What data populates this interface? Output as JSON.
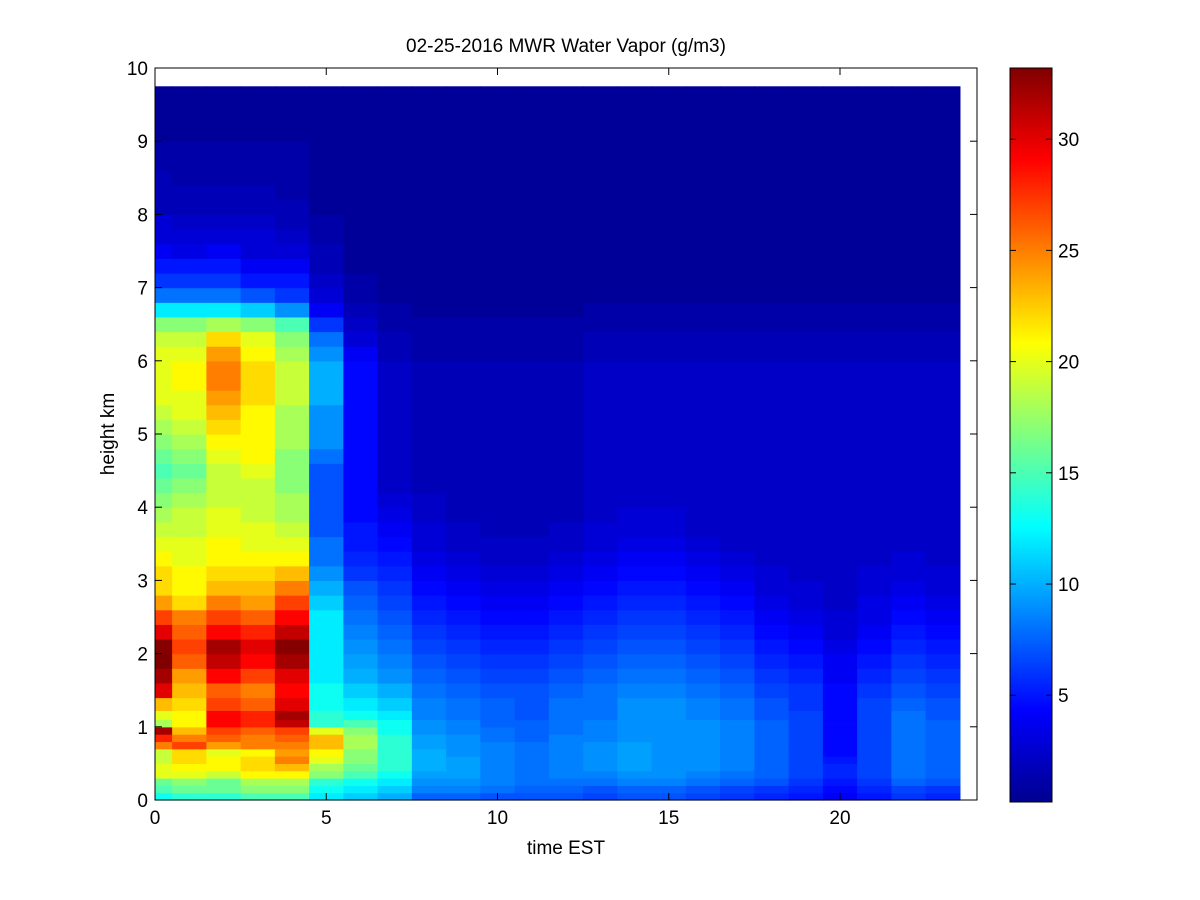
{
  "chart_data": {
    "type": "heatmap",
    "title": "02-25-2016 MWR Water Vapor (g/m3)",
    "xlabel": "time EST",
    "ylabel": "height km",
    "xlim": [
      0,
      24
    ],
    "ylim": [
      0,
      10
    ],
    "xticks": [
      0,
      5,
      10,
      15,
      20
    ],
    "yticks": [
      0,
      1,
      2,
      3,
      4,
      5,
      6,
      7,
      8,
      9,
      10
    ],
    "colormap": "jet",
    "colorbar": {
      "min": 0.2,
      "max": 33.2,
      "ticks": [
        5,
        10,
        15,
        20,
        25,
        30
      ]
    },
    "grid": false,
    "time_step_hours": 1,
    "time_range_hours": [
      0,
      23.5
    ],
    "height_range_km": [
      0,
      9.75
    ],
    "data_extent_note": "",
    "column_centers_hours": [
      0,
      1,
      2,
      3,
      4,
      5,
      6,
      7,
      8,
      9,
      10,
      11,
      12,
      13,
      14,
      15,
      16,
      17,
      18,
      19,
      20,
      21,
      22,
      23
    ],
    "heights_km": [
      0.05,
      0.15,
      0.25,
      0.35,
      0.45,
      0.55,
      0.65,
      0.75,
      0.85,
      0.95,
      1.05,
      1.15,
      1.3,
      1.5,
      1.7,
      1.9,
      2.1,
      2.3,
      2.5,
      2.7,
      2.9,
      3.1,
      3.3,
      3.5,
      3.7,
      3.9,
      4.1,
      4.3,
      4.5,
      4.7,
      4.9,
      5.1,
      5.3,
      5.5,
      5.7,
      5.9,
      6.1,
      6.3,
      6.5,
      6.7,
      6.9,
      7.1,
      7.3,
      7.5,
      7.7,
      7.9,
      8.1,
      8.3,
      8.5,
      8.7,
      8.9,
      9.1,
      9.3,
      9.5,
      9.7
    ],
    "values_g_m3": [
      [
        13,
        15,
        16,
        20,
        20,
        19,
        19,
        25,
        28,
        32,
        18,
        20,
        23,
        30,
        32,
        34,
        33,
        30,
        27,
        24,
        22,
        22,
        21,
        20,
        19,
        18,
        17,
        16,
        15,
        16,
        17,
        18,
        19,
        20,
        20,
        20,
        20,
        19,
        17,
        12,
        8,
        6,
        5,
        4,
        3,
        3,
        2,
        2,
        2,
        1.5,
        1.5,
        1,
        1,
        1,
        1
      ],
      [
        14,
        16,
        17,
        20,
        21,
        22,
        22,
        27,
        25,
        23,
        21,
        21,
        22,
        23,
        24,
        26,
        27,
        26,
        25,
        22,
        21,
        21,
        20,
        20,
        19,
        19,
        18,
        17,
        16,
        17,
        18,
        19,
        20,
        20,
        21,
        21,
        20,
        19,
        17,
        12,
        8,
        6,
        5,
        3.5,
        3,
        2.5,
        2,
        2,
        1.5,
        1.5,
        1.5,
        1,
        1,
        1,
        1
      ],
      [
        14,
        16,
        16,
        19,
        21,
        21,
        20,
        24,
        26,
        27,
        29,
        29,
        27,
        26,
        29,
        31,
        32,
        29,
        27,
        25,
        23,
        22,
        21,
        21,
        20,
        20,
        19,
        19,
        19,
        20,
        21,
        22,
        23,
        24,
        25,
        25,
        24,
        22,
        18,
        12,
        8,
        6,
        5,
        4,
        3,
        2.5,
        2,
        2,
        1.5,
        1.5,
        1.5,
        1,
        1,
        1,
        1
      ],
      [
        15,
        17,
        18,
        21,
        22,
        22,
        21,
        25,
        25,
        26,
        28,
        28,
        26,
        25,
        27,
        29,
        30,
        28,
        26,
        24,
        23,
        22,
        21,
        20,
        20,
        19,
        19,
        19,
        20,
        21,
        21,
        21,
        21,
        22,
        22,
        22,
        21,
        20,
        17,
        11,
        7,
        5,
        4,
        3,
        3,
        2.5,
        2,
        2,
        1.5,
        1.5,
        1.5,
        1,
        1,
        1,
        1
      ],
      [
        15,
        17,
        18,
        21,
        23,
        25,
        24,
        25,
        26,
        27,
        31,
        32,
        30,
        29,
        30,
        32,
        33,
        31,
        29,
        27,
        25,
        23,
        21,
        20,
        19,
        18,
        18,
        17,
        17,
        17,
        18,
        18,
        18,
        19,
        19,
        19,
        18,
        17,
        15,
        9,
        6,
        5,
        4,
        3,
        2.5,
        2,
        2,
        1.5,
        1.5,
        1.5,
        1.5,
        1,
        1,
        1,
        1
      ],
      [
        12,
        13,
        14,
        17,
        18,
        20,
        21,
        23,
        23,
        20,
        14,
        14,
        13,
        13,
        12,
        12,
        12,
        12,
        12,
        11,
        10,
        9,
        8,
        8,
        7,
        7,
        7,
        7,
        7,
        8,
        9,
        9,
        9,
        10,
        10,
        10,
        9,
        8,
        6,
        4,
        3,
        2.5,
        2,
        2,
        1.5,
        1.5,
        1,
        1,
        1,
        1,
        1,
        1,
        1,
        1,
        1
      ],
      [
        11,
        12,
        13,
        15,
        16,
        17,
        17,
        18,
        18,
        17,
        15,
        13,
        12,
        11,
        10,
        9.5,
        9,
        8.5,
        8,
        7.5,
        7,
        6,
        5.5,
        5,
        5,
        4.5,
        4.5,
        4.5,
        4.5,
        4.5,
        4.5,
        4.5,
        4.5,
        4.5,
        4.5,
        4.5,
        4,
        3,
        2.5,
        2,
        1.5,
        1.5,
        1,
        1,
        1,
        1,
        1,
        1,
        1,
        1,
        1,
        1,
        1,
        1,
        1
      ],
      [
        10,
        11,
        12,
        13,
        14,
        14,
        14,
        14,
        14,
        13,
        13,
        12,
        11,
        10,
        9,
        8.5,
        8,
        7.5,
        7,
        6.5,
        6,
        5.5,
        5,
        4.5,
        4,
        3.5,
        3,
        2.5,
        2.5,
        2.5,
        2.5,
        2.5,
        2.5,
        2.5,
        2.5,
        2.5,
        2,
        2,
        1.5,
        1.5,
        1,
        1,
        1,
        1,
        1,
        1,
        1,
        1,
        1,
        1,
        1,
        1,
        1,
        1,
        1
      ],
      [
        7.5,
        8.5,
        9,
        9.5,
        10,
        10,
        10,
        9.5,
        9.5,
        9,
        9,
        8.5,
        8.5,
        8,
        7.5,
        7,
        6.5,
        6,
        5.5,
        5,
        4.5,
        4,
        3.5,
        3,
        3,
        2.5,
        2.5,
        2,
        2,
        2,
        2,
        2,
        2,
        2,
        2,
        2,
        1.5,
        1.5,
        1.5,
        1,
        1,
        1,
        1,
        1,
        1,
        1,
        1,
        1,
        1,
        1,
        1,
        1,
        1,
        1,
        1
      ],
      [
        7.5,
        8.5,
        9,
        9.5,
        9.5,
        9.5,
        9,
        9,
        9,
        8.5,
        8.5,
        8,
        8,
        7.5,
        7,
        6.5,
        6,
        5.5,
        5,
        4.5,
        4,
        3.5,
        3,
        2.5,
        2.5,
        2,
        2,
        2,
        2,
        2,
        2,
        2,
        2,
        2,
        2,
        2,
        1.5,
        1.5,
        1.5,
        1,
        1,
        1,
        1,
        1,
        1,
        1,
        1,
        1,
        1,
        1,
        1,
        1,
        1,
        1,
        1
      ],
      [
        7,
        8,
        8.5,
        8.5,
        8.5,
        8.5,
        8.5,
        8.5,
        8,
        8,
        7.5,
        7.5,
        7.5,
        7,
        6.5,
        6,
        5.5,
        5,
        4.5,
        4,
        3.5,
        3,
        2.5,
        2.5,
        2,
        2,
        2,
        2,
        2,
        2,
        2,
        2,
        2,
        2,
        2,
        2,
        1.5,
        1.5,
        1.5,
        1,
        1,
        1,
        1,
        1,
        1,
        1,
        1,
        1,
        1,
        1,
        1,
        1,
        1,
        1,
        1
      ],
      [
        7,
        7.5,
        8,
        8,
        8,
        8,
        8,
        8,
        7.5,
        7.5,
        7.5,
        7,
        7,
        7,
        6.5,
        6,
        5.5,
        5,
        4.5,
        4,
        3.5,
        3,
        2.5,
        2.5,
        2,
        2,
        2,
        2,
        2,
        2,
        2,
        2,
        2,
        2,
        2,
        2,
        1.5,
        1.5,
        1.5,
        1,
        1,
        1,
        1,
        1,
        1,
        1,
        1,
        1,
        1,
        1,
        1,
        1,
        1,
        1,
        1
      ],
      [
        7,
        7.5,
        8,
        8.5,
        8.5,
        8.5,
        8.5,
        8.5,
        8.5,
        8,
        8,
        8,
        8,
        7.5,
        7,
        6.5,
        6,
        5.5,
        5,
        4.5,
        4,
        3.5,
        3,
        2.5,
        2.5,
        2,
        2,
        2,
        2,
        2,
        2,
        2,
        2,
        2,
        2,
        2,
        1.5,
        1.5,
        1.5,
        1,
        1,
        1,
        1,
        1,
        1,
        1,
        1,
        1,
        1,
        1,
        1,
        1,
        1,
        1,
        1
      ],
      [
        6.5,
        7,
        8,
        8.5,
        9,
        9,
        9,
        9,
        8.5,
        8.5,
        8.5,
        8,
        8,
        8,
        7.5,
        7,
        6.5,
        6,
        5.5,
        5,
        4.5,
        4,
        3.5,
        3,
        3,
        2.5,
        2.5,
        2.5,
        2.5,
        2.5,
        2.5,
        2.5,
        2.5,
        2.5,
        2.5,
        2.5,
        2,
        2,
        1.5,
        1.5,
        1,
        1,
        1,
        1,
        1,
        1,
        1,
        1,
        1,
        1,
        1,
        1,
        1,
        1,
        1
      ],
      [
        7,
        7.5,
        8.5,
        9,
        9.5,
        9.5,
        9.5,
        9.5,
        9,
        9,
        9,
        9,
        9,
        8.5,
        8,
        7.5,
        7,
        6.5,
        6,
        5.5,
        5,
        4.5,
        4,
        3.5,
        3,
        3,
        2.5,
        2.5,
        2.5,
        2.5,
        2.5,
        2.5,
        2.5,
        2.5,
        2.5,
        2.5,
        2,
        2,
        1.5,
        1.5,
        1,
        1,
        1,
        1,
        1,
        1,
        1,
        1,
        1,
        1,
        1,
        1,
        1,
        1,
        1
      ],
      [
        7,
        7.5,
        8.5,
        9,
        9,
        9,
        9,
        9,
        9,
        9,
        9,
        9,
        9,
        8.5,
        8,
        7.5,
        7,
        6.5,
        6,
        5.5,
        5,
        4.5,
        4,
        3.5,
        3,
        3,
        2.5,
        2.5,
        2.5,
        2.5,
        2.5,
        2.5,
        2.5,
        2.5,
        2.5,
        2.5,
        2,
        2,
        1.5,
        1.5,
        1,
        1,
        1,
        1,
        1,
        1,
        1,
        1,
        1,
        1,
        1,
        1,
        1,
        1,
        1
      ],
      [
        6.5,
        7,
        8,
        8.5,
        9,
        9,
        9,
        9,
        9,
        9,
        9,
        8.5,
        8.5,
        8,
        7.5,
        7,
        6.5,
        6,
        5.5,
        5,
        4.5,
        4,
        3.5,
        3,
        2.5,
        2.5,
        2.5,
        2.5,
        2.5,
        2.5,
        2.5,
        2.5,
        2.5,
        2.5,
        2.5,
        2.5,
        2,
        2,
        1.5,
        1.5,
        1,
        1,
        1,
        1,
        1,
        1,
        1,
        1,
        1,
        1,
        1,
        1,
        1,
        1,
        1
      ],
      [
        6,
        6.5,
        7.5,
        8,
        8.5,
        8.5,
        8.5,
        8.5,
        8.5,
        8.5,
        8.5,
        8,
        8,
        7.5,
        7,
        6.5,
        6,
        5.5,
        5,
        4.5,
        4,
        3.5,
        3,
        2.5,
        2.5,
        2.5,
        2.5,
        2.5,
        2.5,
        2.5,
        2.5,
        2.5,
        2.5,
        2.5,
        2.5,
        2.5,
        2,
        2,
        1.5,
        1.5,
        1,
        1,
        1,
        1,
        1,
        1,
        1,
        1,
        1,
        1,
        1,
        1,
        1,
        1,
        1
      ],
      [
        5.5,
        6,
        7,
        7.5,
        7.5,
        7.5,
        7.5,
        7.5,
        7.5,
        7.5,
        7.5,
        7,
        7,
        6.5,
        6,
        5.5,
        5,
        4.5,
        4,
        3.5,
        3,
        3,
        2.5,
        2.5,
        2.5,
        2.5,
        2.5,
        2.5,
        2.5,
        2.5,
        2.5,
        2.5,
        2.5,
        2.5,
        2.5,
        2.5,
        2,
        2,
        1.5,
        1.5,
        1,
        1,
        1,
        1,
        1,
        1,
        1,
        1,
        1,
        1,
        1,
        1,
        1,
        1,
        1
      ],
      [
        5,
        5.5,
        6,
        6.5,
        6.5,
        6.5,
        6.5,
        6.5,
        6.5,
        6.5,
        6.5,
        6.5,
        6,
        6,
        5.5,
        5,
        4.5,
        4,
        3.5,
        3,
        3,
        2.5,
        2.5,
        2.5,
        2.5,
        2.5,
        2.5,
        2.5,
        2.5,
        2.5,
        2.5,
        2.5,
        2.5,
        2.5,
        2.5,
        2.5,
        2,
        2,
        1.5,
        1.5,
        1,
        1,
        1,
        1,
        1,
        1,
        1,
        1,
        1,
        1,
        1,
        1,
        1,
        1,
        1
      ],
      [
        4,
        4.5,
        5,
        5.5,
        5.5,
        5,
        4.5,
        4.5,
        4.5,
        4.5,
        4.5,
        4.5,
        4.5,
        4.5,
        4,
        4,
        3.5,
        3,
        3,
        2.5,
        2.5,
        2.5,
        2.5,
        2.5,
        2.5,
        2.5,
        2.5,
        2.5,
        2.5,
        2.5,
        2.5,
        2.5,
        2.5,
        2.5,
        2.5,
        2.5,
        2,
        2,
        1.5,
        1.5,
        1,
        1,
        1,
        1,
        1,
        1,
        1,
        1,
        1,
        1,
        1,
        1,
        1,
        1,
        1
      ],
      [
        5,
        5.5,
        6,
        6.5,
        6.5,
        6.5,
        6.5,
        6.5,
        6.5,
        6.5,
        6.5,
        6.5,
        6.5,
        6,
        5.5,
        5,
        4.5,
        4,
        3.5,
        3.5,
        3,
        3,
        2.5,
        2.5,
        2.5,
        2.5,
        2.5,
        2.5,
        2.5,
        2.5,
        2.5,
        2.5,
        2.5,
        2.5,
        2.5,
        2.5,
        2,
        2,
        1.5,
        1.5,
        1,
        1,
        1,
        1,
        1,
        1,
        1,
        1,
        1,
        1,
        1,
        1,
        1,
        1,
        1
      ],
      [
        6,
        6.5,
        7.5,
        8,
        8,
        8,
        8,
        8,
        8,
        8,
        8,
        8,
        7.5,
        7,
        6.5,
        6,
        5.5,
        5,
        4.5,
        4,
        3.5,
        3,
        3,
        2.5,
        2.5,
        2.5,
        2.5,
        2.5,
        2.5,
        2.5,
        2.5,
        2.5,
        2.5,
        2.5,
        2.5,
        2.5,
        2,
        2,
        1.5,
        1.5,
        1,
        1,
        1,
        1,
        1,
        1,
        1,
        1,
        1,
        1,
        1,
        1,
        1,
        1,
        1
      ],
      [
        5.5,
        6,
        7,
        7.5,
        7.5,
        7.5,
        7.5,
        7.5,
        7.5,
        7.5,
        7.5,
        7,
        7,
        6.5,
        6,
        5.5,
        5,
        4.5,
        4,
        3.5,
        3,
        3,
        2.5,
        2.5,
        2.5,
        2.5,
        2.5,
        2.5,
        2.5,
        2.5,
        2.5,
        2.5,
        2.5,
        2.5,
        2.5,
        2.5,
        2,
        2,
        1.5,
        1.5,
        1,
        1,
        1,
        1,
        1,
        1,
        1,
        1,
        1,
        1,
        1,
        1,
        1,
        1,
        1
      ]
    ]
  }
}
